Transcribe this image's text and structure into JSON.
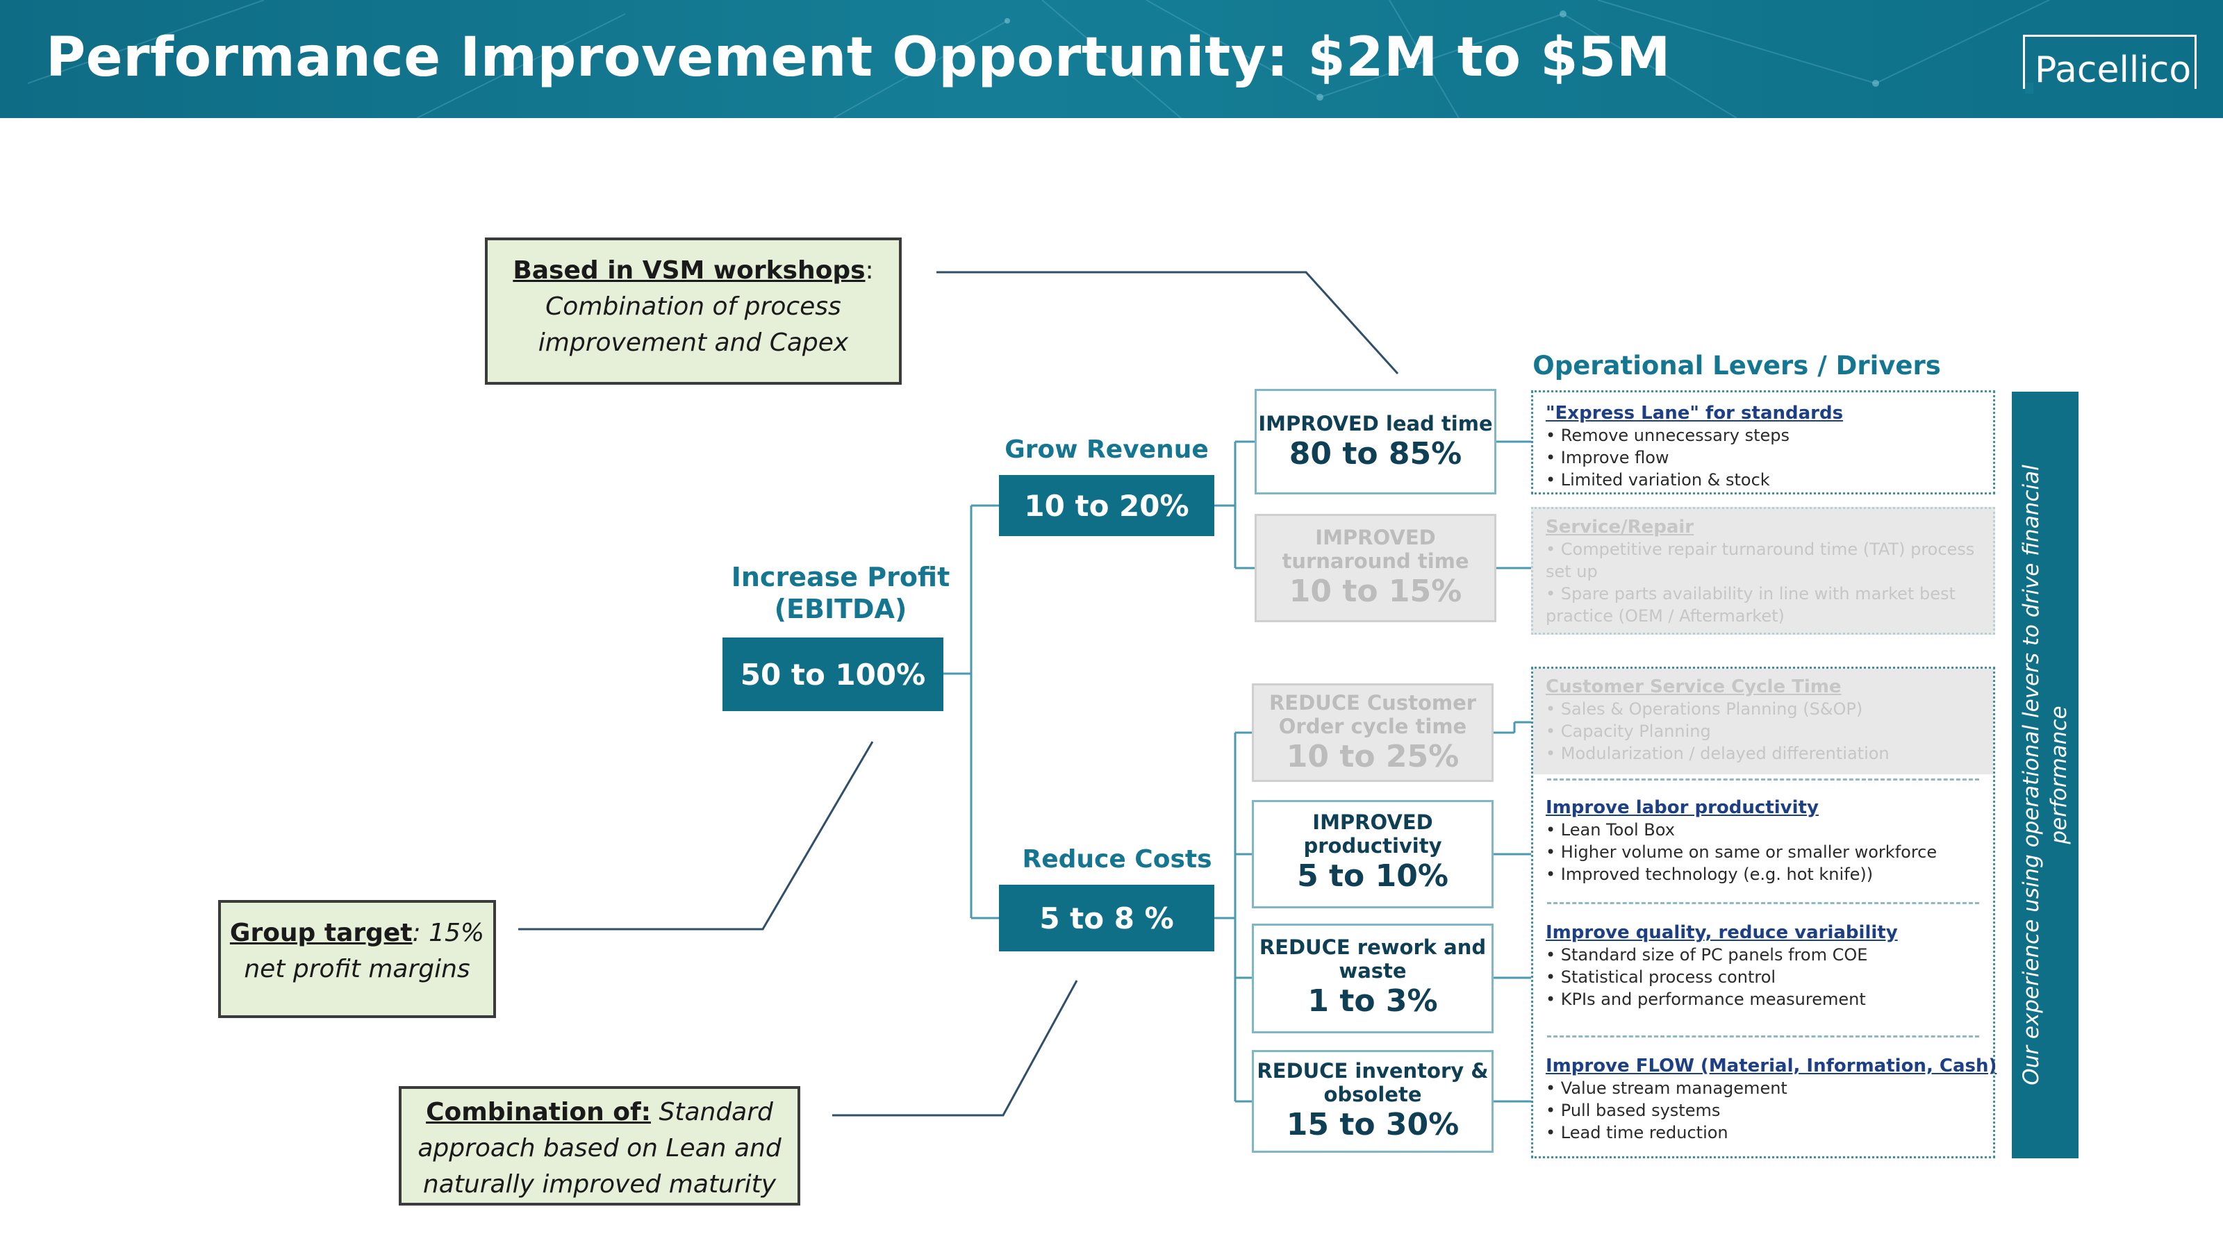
{
  "header": {
    "title": "Performance Improvement Opportunity: $2M to $5M",
    "logo_text": "Pacellico"
  },
  "notes": {
    "vsm": {
      "lead": "Based in VSM workshops",
      "after_lead": ":",
      "line1": "Combination of process",
      "line2": "improvement and Capex"
    },
    "group": {
      "lead": "Group target",
      "after_lead": ": 15%",
      "line1": "net profit margins"
    },
    "combination": {
      "lead": "Combination of:",
      "after_lead": " Standard",
      "line1": "approach based on Lean and",
      "line2": "naturally improved maturity"
    }
  },
  "profit": {
    "heading_line1": "Increase Profit",
    "heading_line2": "(EBITDA)",
    "value": "50 to 100%"
  },
  "revenue": {
    "heading": "Grow Revenue",
    "value": "10 to 20%"
  },
  "costs": {
    "heading": "Reduce Costs",
    "value": "5 to 8 %"
  },
  "levers_heading": "Operational Levers / Drivers",
  "levers": [
    {
      "line1": "IMPROVED lead time",
      "line2": "",
      "value": "80 to 85%"
    },
    {
      "line1": "IMPROVED",
      "line2": "turnaround time",
      "value": "10 to 15%"
    },
    {
      "line1": "REDUCE Customer",
      "line2": "Order cycle time",
      "value": "10 to 25%"
    },
    {
      "line1": "IMPROVED",
      "line2": "productivity",
      "value": "5 to 10%"
    },
    {
      "line1": "REDUCE rework and",
      "line2": "waste",
      "value": "1 to 3%"
    },
    {
      "line1": "REDUCE inventory &",
      "line2": "obsolete",
      "value": "15 to 30%"
    }
  ],
  "drivers": [
    {
      "title": "\"Express Lane\" for standards",
      "items": [
        "• Remove unnecessary steps",
        "• Improve flow",
        "• Limited variation & stock"
      ]
    },
    {
      "title": "Service/Repair",
      "items": [
        "• Competitive repair turnaround time (TAT) process",
        "   set up",
        "• Spare parts availability in line with market best",
        "   practice (OEM / Aftermarket)"
      ]
    },
    {
      "title": "Customer Service Cycle Time",
      "items": [
        "• Sales & Operations Planning (S&OP)",
        "• Capacity Planning",
        "• Modularization / delayed differentiation"
      ]
    },
    {
      "title": "Improve labor productivity",
      "items": [
        "• Lean Tool Box",
        "• Higher volume on same or smaller workforce",
        "• Improved technology (e.g. hot knife))"
      ]
    },
    {
      "title": "Improve quality, reduce variability",
      "items": [
        "• Standard size of PC panels from COE",
        "• Statistical process control",
        "• KPIs and performance measurement"
      ]
    },
    {
      "title": "Improve FLOW (Material, Information, Cash)",
      "items": [
        "• Value stream management",
        "• Pull based systems",
        "• Lead time reduction"
      ]
    }
  ],
  "sidebar_text": "Our experience using operational levers to drive financial performance",
  "colors": {
    "header": "#157e96",
    "accent": "#0f6f87",
    "note_fill": "#e6efd8",
    "heading_text": "#157691"
  }
}
